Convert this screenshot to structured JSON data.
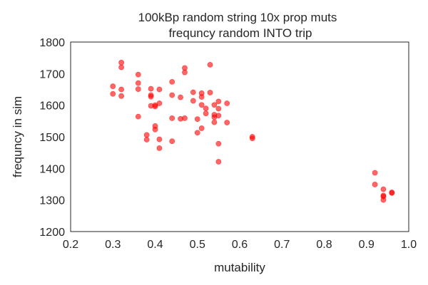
{
  "chart_data": {
    "type": "scatter",
    "title": [
      "100kBp random string   10x prop muts",
      "frequncy   random INTO trip"
    ],
    "xlabel": "mutability",
    "ylabel": "frequncy in sim",
    "xlim": [
      0.2,
      1.0
    ],
    "ylim": [
      1200,
      1800
    ],
    "x_ticks": [
      "0.2",
      "0.3",
      "0.4",
      "0.5",
      "0.6",
      "0.7",
      "0.8",
      "0.9",
      "1.0"
    ],
    "y_ticks": [
      "1200",
      "1300",
      "1400",
      "1500",
      "1600",
      "1700",
      "1800"
    ],
    "grid": false,
    "legend": "none",
    "marker_color": "#ff0000",
    "marker_opacity": 0.6,
    "points": [
      {
        "x": 0.3,
        "y": 1660
      },
      {
        "x": 0.3,
        "y": 1636
      },
      {
        "x": 0.32,
        "y": 1735
      },
      {
        "x": 0.32,
        "y": 1720
      },
      {
        "x": 0.32,
        "y": 1650
      },
      {
        "x": 0.32,
        "y": 1629
      },
      {
        "x": 0.36,
        "y": 1697
      },
      {
        "x": 0.36,
        "y": 1670
      },
      {
        "x": 0.36,
        "y": 1651
      },
      {
        "x": 0.36,
        "y": 1564
      },
      {
        "x": 0.38,
        "y": 1506
      },
      {
        "x": 0.38,
        "y": 1491
      },
      {
        "x": 0.39,
        "y": 1652
      },
      {
        "x": 0.39,
        "y": 1632
      },
      {
        "x": 0.39,
        "y": 1627
      },
      {
        "x": 0.39,
        "y": 1598
      },
      {
        "x": 0.4,
        "y": 1600
      },
      {
        "x": 0.4,
        "y": 1596
      },
      {
        "x": 0.4,
        "y": 1534
      },
      {
        "x": 0.4,
        "y": 1523
      },
      {
        "x": 0.41,
        "y": 1650
      },
      {
        "x": 0.41,
        "y": 1606
      },
      {
        "x": 0.41,
        "y": 1492
      },
      {
        "x": 0.41,
        "y": 1464
      },
      {
        "x": 0.44,
        "y": 1674
      },
      {
        "x": 0.44,
        "y": 1632
      },
      {
        "x": 0.44,
        "y": 1559
      },
      {
        "x": 0.44,
        "y": 1486
      },
      {
        "x": 0.46,
        "y": 1625
      },
      {
        "x": 0.46,
        "y": 1557
      },
      {
        "x": 0.47,
        "y": 1718
      },
      {
        "x": 0.47,
        "y": 1704
      },
      {
        "x": 0.47,
        "y": 1559
      },
      {
        "x": 0.49,
        "y": 1641
      },
      {
        "x": 0.49,
        "y": 1614
      },
      {
        "x": 0.5,
        "y": 1556
      },
      {
        "x": 0.5,
        "y": 1513
      },
      {
        "x": 0.51,
        "y": 1638
      },
      {
        "x": 0.51,
        "y": 1626
      },
      {
        "x": 0.51,
        "y": 1601
      },
      {
        "x": 0.51,
        "y": 1527
      },
      {
        "x": 0.52,
        "y": 1590
      },
      {
        "x": 0.52,
        "y": 1574
      },
      {
        "x": 0.53,
        "y": 1728
      },
      {
        "x": 0.53,
        "y": 1640
      },
      {
        "x": 0.54,
        "y": 1601
      },
      {
        "x": 0.54,
        "y": 1570
      },
      {
        "x": 0.54,
        "y": 1562
      },
      {
        "x": 0.54,
        "y": 1546
      },
      {
        "x": 0.55,
        "y": 1612
      },
      {
        "x": 0.55,
        "y": 1589
      },
      {
        "x": 0.55,
        "y": 1567
      },
      {
        "x": 0.55,
        "y": 1478
      },
      {
        "x": 0.55,
        "y": 1421
      },
      {
        "x": 0.57,
        "y": 1606
      },
      {
        "x": 0.57,
        "y": 1545
      },
      {
        "x": 0.63,
        "y": 1500
      },
      {
        "x": 0.63,
        "y": 1495
      },
      {
        "x": 0.92,
        "y": 1386
      },
      {
        "x": 0.92,
        "y": 1349
      },
      {
        "x": 0.94,
        "y": 1334
      },
      {
        "x": 0.94,
        "y": 1314
      },
      {
        "x": 0.94,
        "y": 1311
      },
      {
        "x": 0.94,
        "y": 1300
      },
      {
        "x": 0.96,
        "y": 1324
      },
      {
        "x": 0.96,
        "y": 1322
      }
    ]
  }
}
